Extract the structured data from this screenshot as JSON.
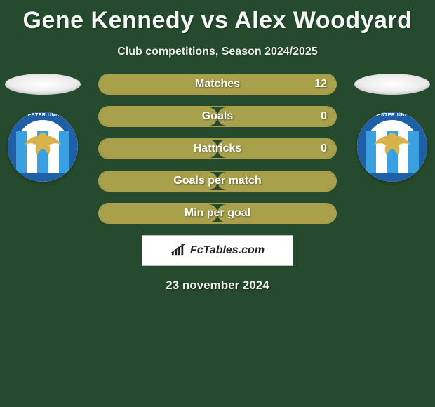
{
  "title": "Gene Kennedy vs Alex Woodyard",
  "subtitle": "Club competitions, Season 2024/2025",
  "date": "23 november 2024",
  "footer_brand": "FcTables.com",
  "theme": {
    "background": "#264a2e",
    "bar_border": "#a8a04a",
    "bar_fill": "#a8a04a",
    "text": "#ffffff"
  },
  "players": {
    "left": {
      "club_ring_text": "COLCHESTER UNITED FC"
    },
    "right": {
      "club_ring_text": "COLCHESTER UNITED FC"
    }
  },
  "stats": [
    {
      "label": "Matches",
      "left_pct": 0,
      "right_pct": 100,
      "right_value": "12"
    },
    {
      "label": "Goals",
      "left_pct": 50,
      "right_pct": 50,
      "right_value": "0"
    },
    {
      "label": "Hattricks",
      "left_pct": 50,
      "right_pct": 50,
      "right_value": "0"
    },
    {
      "label": "Goals per match",
      "left_pct": 50,
      "right_pct": 50,
      "right_value": ""
    },
    {
      "label": "Min per goal",
      "left_pct": 50,
      "right_pct": 50,
      "right_value": ""
    }
  ]
}
